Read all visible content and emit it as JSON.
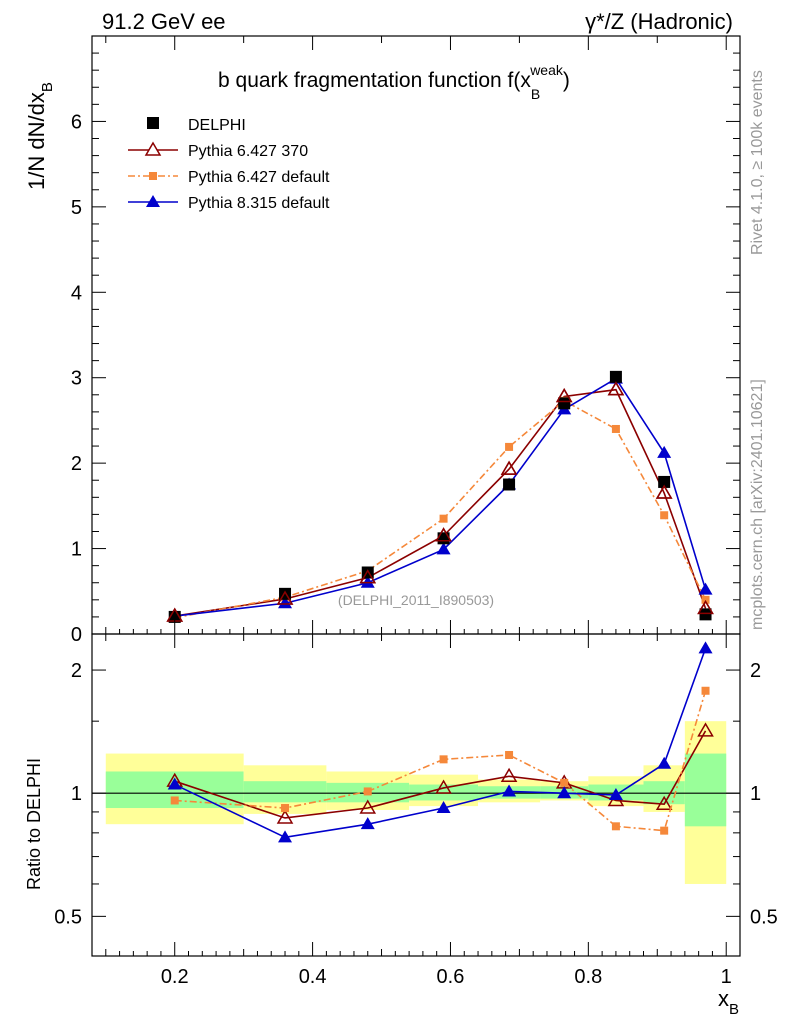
{
  "header": {
    "energy": "91.2 GeV ee",
    "process": "γ*/Z (Hadronic)"
  },
  "side_labels": {
    "rivet": "Rivet 4.1.0, ≥ 100k events",
    "mcplots": "mcplots.cern.ch [arXiv:2401.10621]"
  },
  "analysis_id": "(DELPHI_2011_I890503)",
  "chart_data": [
    {
      "type": "line",
      "title": "b quark fragmentation function f(x",
      "title_sub": "B",
      "title_sup": "weak",
      "title_end": ")",
      "ylabel": "1/N  dN/dx",
      "ylabel_sub": "B",
      "xlim": [
        0.08,
        1.02
      ],
      "ylim": [
        0,
        7
      ],
      "yticks": [
        0,
        1,
        2,
        3,
        4,
        5,
        6
      ],
      "x": [
        0.2,
        0.36,
        0.48,
        0.59,
        0.685,
        0.765,
        0.84,
        0.91,
        0.97
      ],
      "series": [
        {
          "name": "DELPHI",
          "role": "data",
          "color": "#000000",
          "marker": "square",
          "values": [
            0.2,
            0.47,
            0.72,
            1.12,
            1.75,
            2.7,
            3.01,
            1.78,
            0.23
          ]
        },
        {
          "name": "Pythia 6.427 370",
          "role": "mc",
          "color": "#8b0000",
          "marker": "triangle-open",
          "dash": "",
          "values": [
            0.21,
            0.41,
            0.66,
            1.15,
            1.93,
            2.78,
            2.86,
            1.65,
            0.3
          ]
        },
        {
          "name": "Pythia 6.427 default",
          "role": "mc",
          "color": "#f5883a",
          "marker": "square-small",
          "dash": "7,3,2,3",
          "values": [
            0.19,
            0.43,
            0.74,
            1.35,
            2.19,
            2.73,
            2.4,
            1.39,
            0.4
          ]
        },
        {
          "name": "Pythia 8.315 default",
          "role": "mc",
          "color": "#0000cc",
          "marker": "triangle-filled",
          "dash": "",
          "values": [
            0.21,
            0.36,
            0.6,
            0.99,
            1.75,
            2.63,
            2.99,
            2.12,
            0.52
          ]
        }
      ]
    },
    {
      "type": "line",
      "ylabel": "Ratio to DELPHI",
      "xlabel": "x",
      "xlabel_sub": "B",
      "scale": "log",
      "ylim": [
        0.4,
        2.45
      ],
      "yticks": [
        0.5,
        1,
        2
      ],
      "ytick_labels": [
        "0.5",
        "1",
        "2"
      ],
      "xticks": [
        0.2,
        0.4,
        0.6,
        0.8,
        1.0
      ],
      "xtick_labels": [
        "0.2",
        "0.4",
        "0.6",
        "0.8",
        "1"
      ],
      "bin_edges": [
        0.1,
        0.3,
        0.42,
        0.54,
        0.64,
        0.73,
        0.8,
        0.88,
        0.94,
        1.0
      ],
      "band_inner": [
        [
          0.92,
          1.13
        ],
        [
          0.95,
          1.07
        ],
        [
          0.95,
          1.06
        ],
        [
          0.96,
          1.05
        ],
        [
          0.97,
          1.04
        ],
        [
          0.97,
          1.04
        ],
        [
          0.96,
          1.05
        ],
        [
          0.94,
          1.07
        ],
        [
          0.83,
          1.25
        ]
      ],
      "band_outer": [
        [
          0.84,
          1.25
        ],
        [
          0.89,
          1.17
        ],
        [
          0.91,
          1.13
        ],
        [
          0.93,
          1.11
        ],
        [
          0.95,
          1.08
        ],
        [
          0.96,
          1.07
        ],
        [
          0.93,
          1.1
        ],
        [
          0.9,
          1.17
        ],
        [
          0.6,
          1.5
        ]
      ],
      "band_colors": {
        "inner": "#99ff99",
        "outer": "#ffff99"
      },
      "series": [
        {
          "name": "Pythia 6.427 370",
          "color": "#8b0000",
          "marker": "triangle-open",
          "dash": "",
          "values": [
            1.07,
            0.87,
            0.92,
            1.03,
            1.1,
            1.06,
            0.96,
            0.94,
            1.42
          ]
        },
        {
          "name": "Pythia 6.427 default",
          "color": "#f5883a",
          "marker": "square-small",
          "dash": "7,3,2,3",
          "values": [
            0.96,
            0.92,
            1.01,
            1.21,
            1.24,
            1.06,
            0.83,
            0.81,
            1.78
          ]
        },
        {
          "name": "Pythia 8.315 default",
          "color": "#0000cc",
          "marker": "triangle-filled",
          "dash": "",
          "values": [
            1.05,
            0.78,
            0.84,
            0.92,
            1.01,
            1.0,
            0.99,
            1.18,
            2.26
          ]
        }
      ]
    }
  ]
}
